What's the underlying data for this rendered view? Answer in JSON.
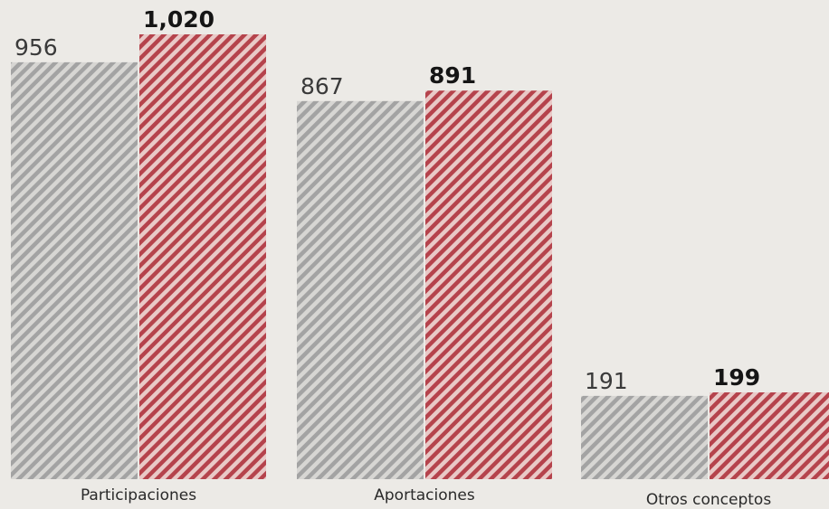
{
  "chart_data": {
    "type": "bar",
    "categories": [
      "Participaciones",
      "Aportaciones",
      "Otros conceptos"
    ],
    "series": [
      {
        "values": [
          956,
          867,
          191
        ],
        "color": "#a3a3a3",
        "pattern": "diagonal-stripes",
        "label_style": "regular"
      },
      {
        "values": [
          1020,
          891,
          199
        ],
        "color": "#b5434c",
        "pattern": "diagonal-stripes",
        "label_style": "bold"
      }
    ],
    "value_labels": [
      "956",
      "1,020",
      "867",
      "891",
      "191",
      "199"
    ],
    "ylim": [
      0,
      1020
    ],
    "grid": false,
    "legend": "none",
    "background": "#eceae6",
    "text_color": "#2a2a2a"
  }
}
